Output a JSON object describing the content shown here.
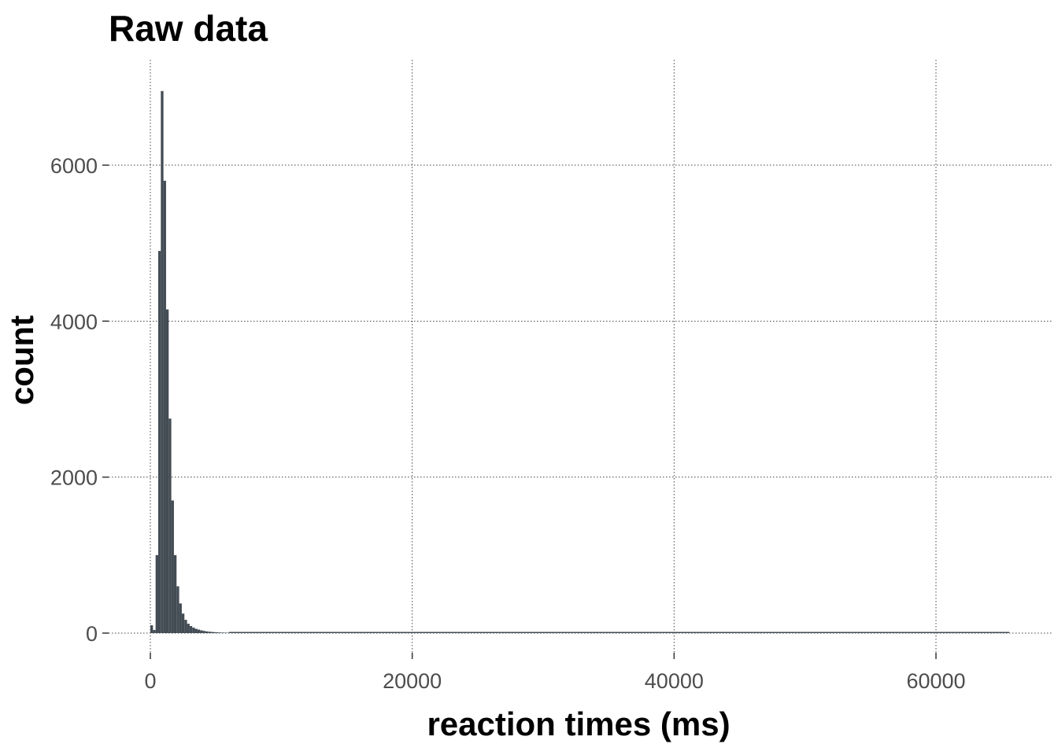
{
  "chart_data": {
    "type": "bar",
    "subtype": "histogram",
    "title": "Raw data",
    "xlabel": "reaction times (ms)",
    "ylabel": "count",
    "xlim": [
      0,
      68000
    ],
    "ylim": [
      0,
      7000
    ],
    "x_ticks": [
      0,
      20000,
      40000,
      60000
    ],
    "y_ticks": [
      0,
      2000,
      4000,
      6000
    ],
    "bin_width": 200,
    "bar_color": "#434c54",
    "grid": true,
    "grid_style": "dotted",
    "bins": [
      {
        "x": 0,
        "count": 100
      },
      {
        "x": 200,
        "count": 40
      },
      {
        "x": 400,
        "count": 1000
      },
      {
        "x": 600,
        "count": 4900
      },
      {
        "x": 800,
        "count": 6950
      },
      {
        "x": 1000,
        "count": 5800
      },
      {
        "x": 1200,
        "count": 4150
      },
      {
        "x": 1400,
        "count": 2750
      },
      {
        "x": 1600,
        "count": 1700
      },
      {
        "x": 1800,
        "count": 1000
      },
      {
        "x": 2000,
        "count": 600
      },
      {
        "x": 2200,
        "count": 380
      },
      {
        "x": 2400,
        "count": 250
      },
      {
        "x": 2600,
        "count": 170
      },
      {
        "x": 2800,
        "count": 120
      },
      {
        "x": 3000,
        "count": 90
      },
      {
        "x": 3200,
        "count": 70
      },
      {
        "x": 3400,
        "count": 55
      },
      {
        "x": 3600,
        "count": 45
      },
      {
        "x": 3800,
        "count": 35
      },
      {
        "x": 4000,
        "count": 28
      },
      {
        "x": 4200,
        "count": 22
      },
      {
        "x": 4400,
        "count": 18
      },
      {
        "x": 4600,
        "count": 15
      },
      {
        "x": 4800,
        "count": 12
      },
      {
        "x": 5000,
        "count": 10
      },
      {
        "x": 5200,
        "count": 8
      },
      {
        "x": 5400,
        "count": 7
      },
      {
        "x": 5600,
        "count": 6
      },
      {
        "x": 5800,
        "count": 5
      }
    ],
    "max_x": 65600
  }
}
